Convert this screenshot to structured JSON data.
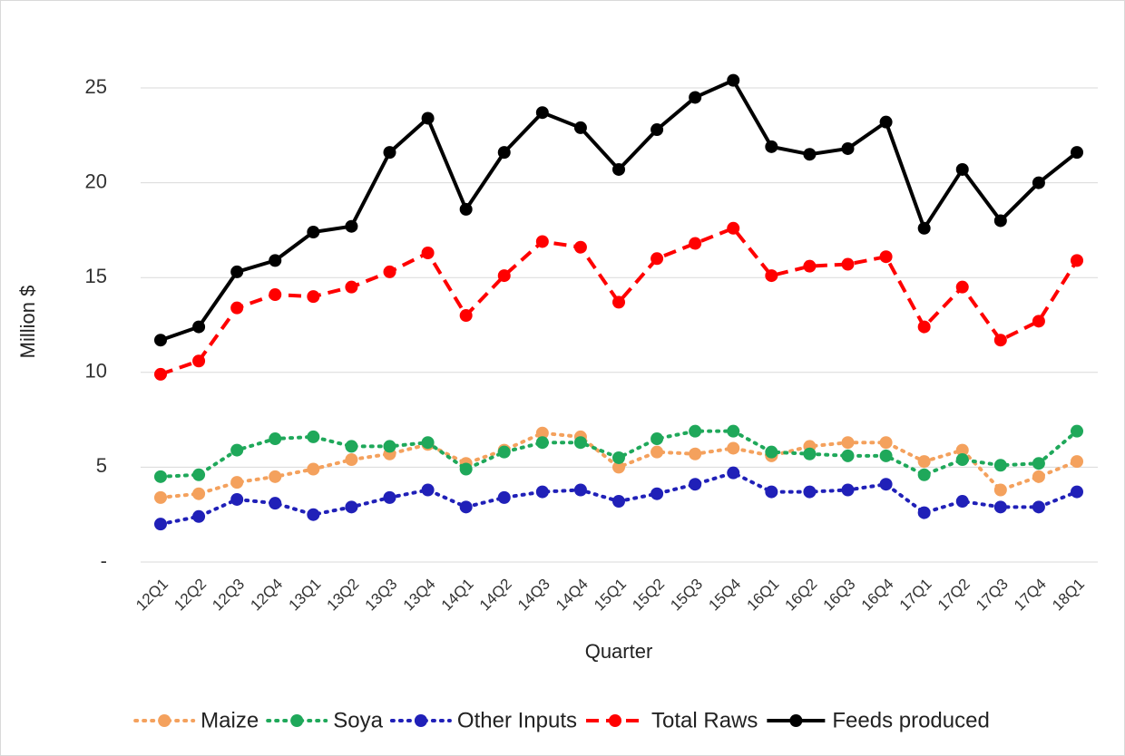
{
  "chart_data": {
    "type": "line",
    "x_label": "Quarter",
    "y_label": "Million $",
    "categories": [
      "12Q1",
      "12Q2",
      "12Q3",
      "12Q4",
      "13Q1",
      "13Q2",
      "13Q3",
      "13Q4",
      "14Q1",
      "14Q2",
      "14Q3",
      "14Q4",
      "15Q1",
      "15Q2",
      "15Q3",
      "15Q4",
      "16Q1",
      "16Q2",
      "16Q3",
      "16Q4",
      "17Q1",
      "17Q2",
      "17Q3",
      "17Q4",
      "18Q1"
    ],
    "ylim": [
      0,
      25
    ],
    "yticks": [
      {
        "value": 0,
        "label": "-"
      },
      5,
      10,
      15,
      20,
      25
    ],
    "grid": true,
    "legend": "bottom",
    "series": [
      {
        "name": "Maize",
        "color": "#f4a15d",
        "style": "dotted",
        "values": [
          3.4,
          3.6,
          4.2,
          4.5,
          4.9,
          5.4,
          5.7,
          6.2,
          5.2,
          5.9,
          6.8,
          6.6,
          5.0,
          5.8,
          5.7,
          6.0,
          5.6,
          6.1,
          6.3,
          6.3,
          5.3,
          5.9,
          3.8,
          4.5,
          5.3
        ]
      },
      {
        "name": "Soya",
        "color": "#1fa85a",
        "style": "dotted",
        "values": [
          4.5,
          4.6,
          5.9,
          6.5,
          6.6,
          6.1,
          6.1,
          6.3,
          4.9,
          5.8,
          6.3,
          6.3,
          5.5,
          6.5,
          6.9,
          6.9,
          5.8,
          5.7,
          5.6,
          5.6,
          4.6,
          5.4,
          5.1,
          5.2,
          6.9
        ]
      },
      {
        "name": "Other Inputs",
        "color": "#2020b8",
        "style": "dotted",
        "values": [
          2.0,
          2.4,
          3.3,
          3.1,
          2.5,
          2.9,
          3.4,
          3.8,
          2.9,
          3.4,
          3.7,
          3.8,
          3.2,
          3.6,
          4.1,
          4.7,
          3.7,
          3.7,
          3.8,
          4.1,
          2.6,
          3.2,
          2.9,
          2.9,
          3.7
        ]
      },
      {
        "name": "Total Raws",
        "color": "#ff0000",
        "style": "dashed",
        "values": [
          9.9,
          10.6,
          13.4,
          14.1,
          14.0,
          14.5,
          15.3,
          16.3,
          13.0,
          15.1,
          16.9,
          16.6,
          13.7,
          16.0,
          16.8,
          17.6,
          15.1,
          15.6,
          15.7,
          16.1,
          12.4,
          14.5,
          11.7,
          12.7,
          15.9
        ]
      },
      {
        "name": "Feeds produced",
        "color": "#000000",
        "style": "solid",
        "values": [
          11.7,
          12.4,
          15.3,
          15.9,
          17.4,
          17.7,
          21.6,
          23.4,
          18.6,
          21.6,
          23.7,
          22.9,
          20.7,
          22.8,
          24.5,
          25.4,
          21.9,
          21.5,
          21.8,
          23.2,
          17.6,
          20.7,
          18.0,
          20.0,
          21.6
        ]
      }
    ]
  }
}
